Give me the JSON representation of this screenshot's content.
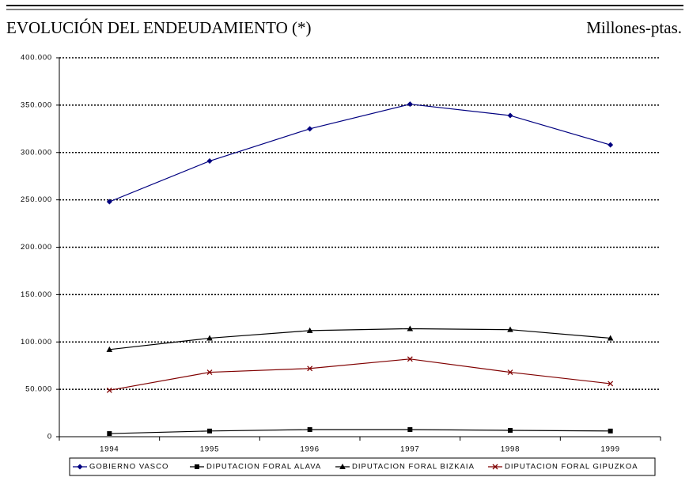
{
  "chart_data": {
    "type": "line",
    "title": "EVOLUCIÓN DEL ENDEUDAMIENTO (*)",
    "subtitle": "Millones-ptas.",
    "categories": [
      "1994",
      "1995",
      "1996",
      "1997",
      "1998",
      "1999"
    ],
    "series": [
      {
        "name": "GOBIERNO VASCO",
        "color": "#000080",
        "marker": "diamond",
        "values": [
          248000,
          291000,
          325000,
          351000,
          339000,
          308000
        ]
      },
      {
        "name": "DIPUTACION FORAL ALAVA",
        "color": "#000000",
        "marker": "square",
        "values": [
          3300,
          6000,
          7500,
          7500,
          6700,
          6000
        ]
      },
      {
        "name": "DIPUTACION FORAL BIZKAIA",
        "color": "#000000",
        "marker": "triangle",
        "values": [
          92000,
          104000,
          112000,
          114000,
          113000,
          104000
        ]
      },
      {
        "name": "DIPUTACION FORAL GIPUZKOA",
        "color": "#800000",
        "marker": "x",
        "values": [
          49000,
          68000,
          72000,
          82000,
          68000,
          56000
        ]
      }
    ],
    "ylim": [
      0,
      400000
    ],
    "yticks": [
      0,
      {
        "value": 50000,
        "label": "50.000"
      },
      {
        "value": 100000,
        "label": "100.000"
      },
      {
        "value": 150000,
        "label": "150.000"
      },
      {
        "value": 200000,
        "label": "200.000"
      },
      {
        "value": 250000,
        "label": "250.000"
      },
      {
        "value": 300000,
        "label": "300.000"
      },
      {
        "value": 350000,
        "label": "350.000"
      },
      {
        "value": 400000,
        "label": "400.000"
      }
    ],
    "grid": true,
    "legend": "bottom"
  }
}
